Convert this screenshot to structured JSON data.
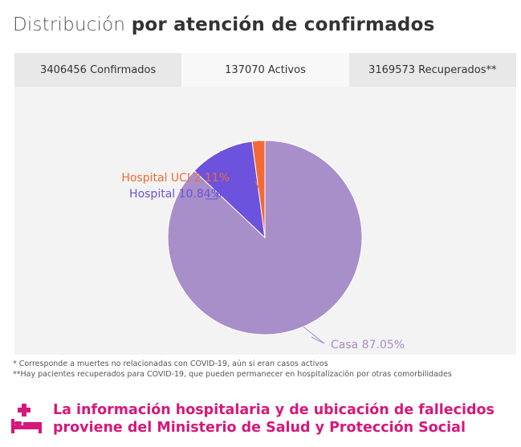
{
  "title": {
    "light": "Distribución",
    "bold": "por atención de confirmados"
  },
  "tabs": [
    {
      "label": "3406456 Confirmados",
      "active": false
    },
    {
      "label": "137070 Activos",
      "active": true
    },
    {
      "label": "3169573 Recuperados**",
      "active": false
    }
  ],
  "chart_data": {
    "type": "pie",
    "slices": [
      {
        "label": "Casa 87.05%",
        "value": 87.05,
        "color": "#a88fc9"
      },
      {
        "label": "Hospital 10.84%",
        "value": 10.84,
        "color": "#6c52dc"
      },
      {
        "label": "Hospital UCI 2.11%",
        "value": 2.11,
        "color": "#f26a35"
      }
    ]
  },
  "notes": {
    "line1": "* Corresponde a muertes no relacionadas con COVID-19, aún si eran casos activos",
    "line2": "**Hay pacientes recuperados para COVID-19, que pueden permanecer en hospitalización por otras comorbilidades"
  },
  "info": {
    "icon": "hospital-bed-icon",
    "line1": "La información hospitalaria y de ubicación de fallecidos",
    "line2": "proviene del Ministerio de Salud y Protección Social",
    "color": "#d6177a"
  }
}
